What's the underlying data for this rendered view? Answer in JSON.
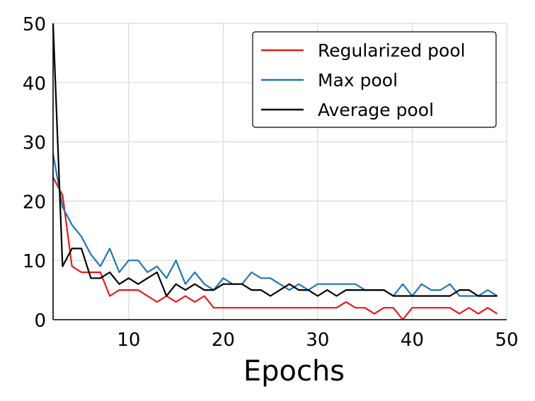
{
  "chart_data": {
    "type": "line",
    "title": "",
    "xlabel": "Epochs",
    "ylabel": "",
    "xlim": [
      2,
      50
    ],
    "ylim": [
      0,
      50
    ],
    "xticks": [
      10,
      20,
      30,
      40,
      50
    ],
    "yticks": [
      0,
      10,
      20,
      30,
      40,
      50
    ],
    "grid": "vertical",
    "legend_position": "top-right",
    "x": [
      2,
      3,
      4,
      5,
      6,
      7,
      8,
      9,
      10,
      11,
      12,
      13,
      14,
      15,
      16,
      17,
      18,
      19,
      20,
      21,
      22,
      23,
      24,
      25,
      26,
      27,
      28,
      29,
      30,
      31,
      32,
      33,
      34,
      35,
      36,
      37,
      38,
      39,
      40,
      41,
      42,
      43,
      44,
      45,
      46,
      47,
      48,
      49
    ],
    "series": [
      {
        "name": "Regularized pool",
        "color": "#e41a1c",
        "values": [
          24,
          21,
          9,
          8,
          8,
          8,
          4,
          5,
          5,
          5,
          4,
          3,
          4,
          3,
          4,
          3,
          4,
          2,
          2,
          2,
          2,
          2,
          2,
          2,
          2,
          2,
          2,
          2,
          2,
          2,
          2,
          3,
          2,
          2,
          1,
          2,
          2,
          0,
          2,
          2,
          2,
          2,
          2,
          1,
          2,
          1,
          2,
          1
        ]
      },
      {
        "name": "Max pool",
        "color": "#1f77b4",
        "values": [
          28,
          19,
          16,
          14,
          11,
          9,
          12,
          8,
          10,
          10,
          8,
          9,
          7,
          10,
          6,
          8,
          6,
          5,
          7,
          6,
          6,
          8,
          7,
          7,
          6,
          5,
          6,
          5,
          6,
          6,
          6,
          6,
          6,
          5,
          5,
          5,
          4,
          6,
          4,
          6,
          5,
          5,
          6,
          4,
          4,
          4,
          5,
          4
        ]
      },
      {
        "name": "Average pool",
        "color": "#000000",
        "values": [
          50,
          9,
          12,
          12,
          7,
          7,
          8,
          6,
          7,
          6,
          7,
          8,
          4,
          6,
          5,
          6,
          5,
          5,
          6,
          6,
          6,
          5,
          5,
          4,
          5,
          6,
          5,
          5,
          4,
          5,
          4,
          5,
          5,
          5,
          5,
          5,
          4,
          4,
          4,
          4,
          4,
          4,
          4,
          5,
          5,
          4,
          4,
          4
        ]
      }
    ]
  }
}
